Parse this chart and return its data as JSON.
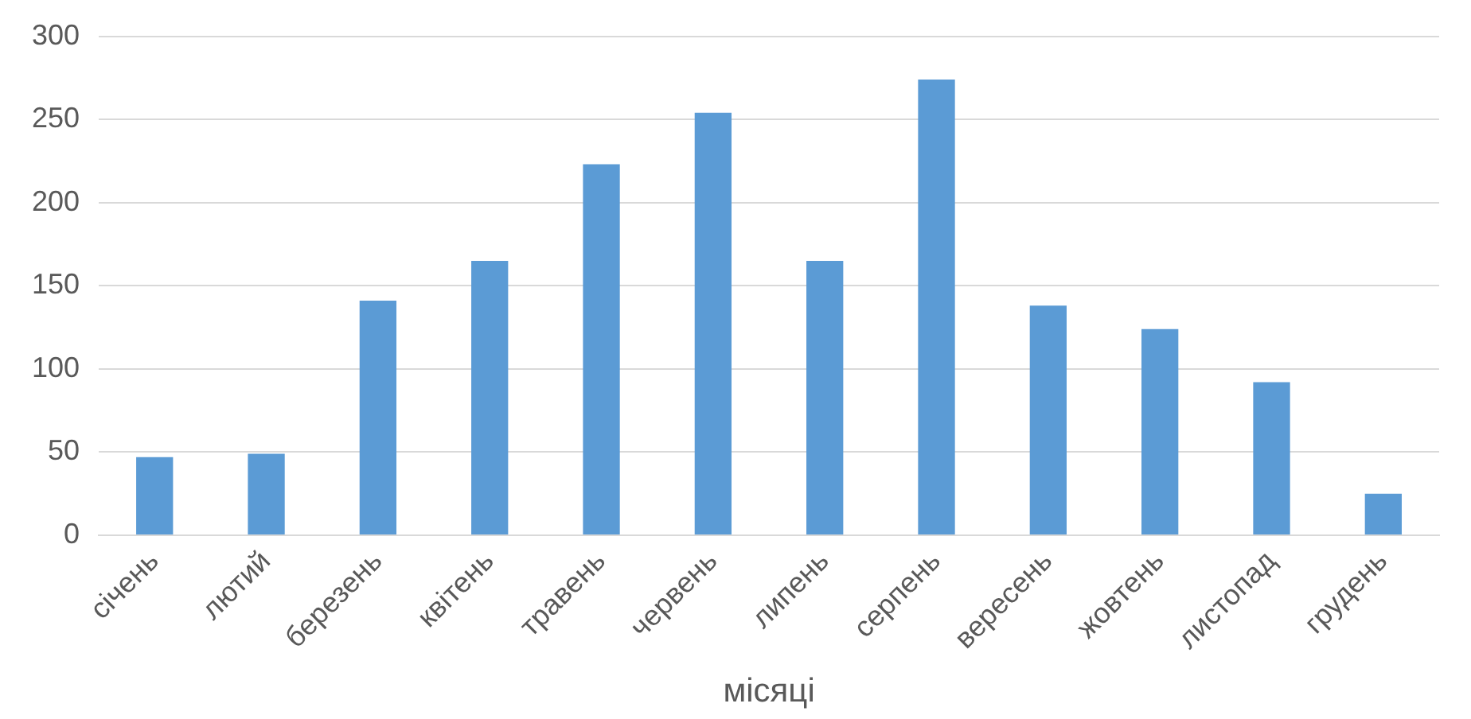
{
  "chart_data": {
    "type": "bar",
    "xlabel": "місяці",
    "categories": [
      "січень",
      "лютий",
      "березень",
      "квітень",
      "травень",
      "червень",
      "липень",
      "серпень",
      "вересень",
      "жовтень",
      "листопад",
      "грудень"
    ],
    "values": [
      47,
      49,
      141,
      165,
      223,
      254,
      165,
      274,
      138,
      124,
      92,
      25
    ],
    "color": "#5b9bd5",
    "ylim": [
      0,
      300
    ],
    "yticks": [
      0,
      50,
      100,
      150,
      200,
      250,
      300
    ],
    "grid": "y",
    "legend": false
  }
}
